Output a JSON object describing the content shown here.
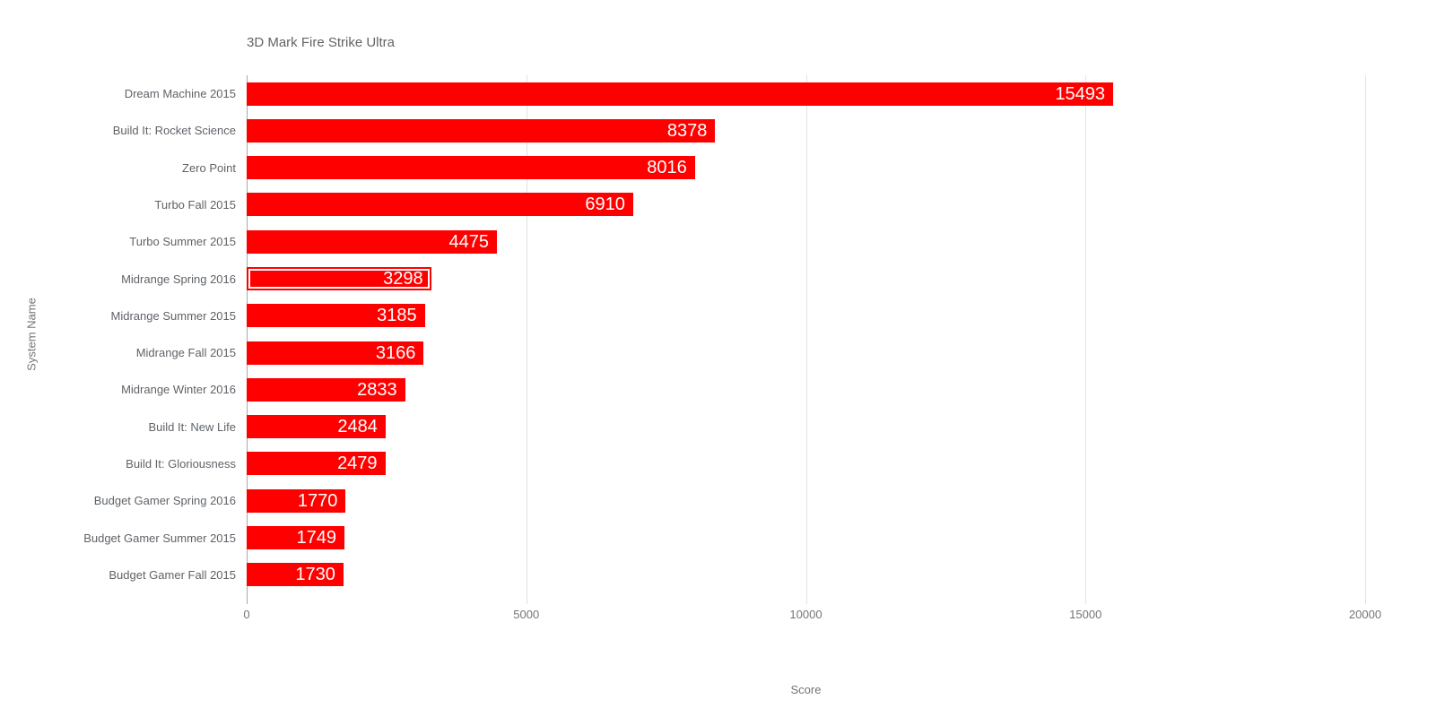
{
  "chart_data": {
    "type": "bar",
    "orientation": "horizontal",
    "title": "3D Mark Fire Strike Ultra",
    "xlabel": "Score",
    "ylabel": "System Name",
    "xlim": [
      0,
      20000
    ],
    "x_ticks": [
      0,
      5000,
      10000,
      15000,
      20000
    ],
    "grid": true,
    "legend": "none",
    "bar_color": "#ff0000",
    "value_label_color": "#ffffff",
    "selected_category": "Midrange Spring 2016",
    "categories": [
      "Dream Machine 2015",
      "Build It: Rocket Science",
      "Zero Point",
      "Turbo Fall 2015",
      "Turbo Summer 2015",
      "Midrange Spring 2016",
      "Midrange Summer 2015",
      "Midrange Fall 2015",
      "Midrange Winter 2016",
      "Build It: New Life",
      "Build It: Gloriousness",
      "Budget Gamer Spring 2016",
      "Budget Gamer Summer 2015",
      "Budget Gamer Fall 2015"
    ],
    "values": [
      15493,
      8378,
      8016,
      6910,
      4475,
      3298,
      3185,
      3166,
      2833,
      2484,
      2479,
      1770,
      1749,
      1730
    ]
  }
}
